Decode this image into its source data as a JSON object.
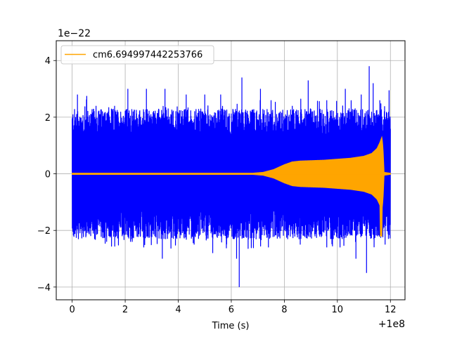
{
  "chart_data": {
    "type": "line",
    "title": "",
    "xlabel": "Time (s)",
    "ylabel": "",
    "x_offset_label": "+1e8",
    "y_scale_label": "1e−22",
    "xlim": [
      -0.6,
      12.55
    ],
    "ylim": [
      -4.45,
      4.7
    ],
    "x_ticks": [
      0,
      2,
      4,
      6,
      8,
      10,
      12
    ],
    "x_tick_labels": [
      "0",
      "2",
      "4",
      "6",
      "8",
      "10",
      "12"
    ],
    "y_ticks": [
      -4,
      -2,
      0,
      2,
      4
    ],
    "y_tick_labels": [
      "−4",
      "−2",
      "0",
      "2",
      "4"
    ],
    "grid": true,
    "legend_position": "top-left",
    "series": [
      {
        "name": "",
        "color": "#0000ff",
        "kind": "noise",
        "x_range": [
          0,
          12.0
        ],
        "typical_amplitude": 2.3,
        "peaks": [
          {
            "x": 0.2,
            "y": 2.8
          },
          {
            "x": 0.55,
            "y": 2.75
          },
          {
            "x": 0.9,
            "y": 2.4
          },
          {
            "x": 1.6,
            "y": 2.4
          },
          {
            "x": 2.1,
            "y": 3.0
          },
          {
            "x": 2.8,
            "y": 3.0
          },
          {
            "x": 3.5,
            "y": 3.0
          },
          {
            "x": 4.3,
            "y": 2.8
          },
          {
            "x": 5.0,
            "y": 2.8
          },
          {
            "x": 5.6,
            "y": 2.8
          },
          {
            "x": 6.4,
            "y": 3.4
          },
          {
            "x": 7.1,
            "y": 3.0
          },
          {
            "x": 7.5,
            "y": 2.6
          },
          {
            "x": 8.3,
            "y": 2.4
          },
          {
            "x": 8.9,
            "y": 3.3
          },
          {
            "x": 9.6,
            "y": 2.6
          },
          {
            "x": 10.3,
            "y": 3.0
          },
          {
            "x": 10.9,
            "y": 2.8
          },
          {
            "x": 11.2,
            "y": 3.8
          },
          {
            "x": 11.35,
            "y": 3.2
          },
          {
            "x": 11.6,
            "y": 2.6
          },
          {
            "x": 11.95,
            "y": 2.95
          }
        ],
        "troughs": [
          {
            "x": 0.1,
            "y": -1.8
          },
          {
            "x": 0.7,
            "y": -2.2
          },
          {
            "x": 1.3,
            "y": -2.4
          },
          {
            "x": 2.2,
            "y": -2.4
          },
          {
            "x": 2.7,
            "y": -2.6
          },
          {
            "x": 3.4,
            "y": -3.0
          },
          {
            "x": 4.6,
            "y": -2.5
          },
          {
            "x": 5.3,
            "y": -2.8
          },
          {
            "x": 6.3,
            "y": -4.0
          },
          {
            "x": 6.2,
            "y": -3.0
          },
          {
            "x": 7.4,
            "y": -2.6
          },
          {
            "x": 8.6,
            "y": -2.5
          },
          {
            "x": 9.6,
            "y": -2.6
          },
          {
            "x": 10.1,
            "y": -2.6
          },
          {
            "x": 10.7,
            "y": -3.0
          },
          {
            "x": 11.1,
            "y": -3.5
          },
          {
            "x": 11.8,
            "y": -2.5
          }
        ]
      },
      {
        "name": "cm6.694997442253766",
        "color": "#ffa500",
        "kind": "chirp",
        "envelope": [
          {
            "x": 0.0,
            "y": 0.02
          },
          {
            "x": 6.8,
            "y": 0.02
          },
          {
            "x": 7.2,
            "y": 0.05
          },
          {
            "x": 7.6,
            "y": 0.15
          },
          {
            "x": 8.0,
            "y": 0.32
          },
          {
            "x": 8.3,
            "y": 0.42
          },
          {
            "x": 8.6,
            "y": 0.45
          },
          {
            "x": 9.5,
            "y": 0.48
          },
          {
            "x": 10.5,
            "y": 0.55
          },
          {
            "x": 11.0,
            "y": 0.62
          },
          {
            "x": 11.3,
            "y": 0.72
          },
          {
            "x": 11.5,
            "y": 0.9
          },
          {
            "x": 11.6,
            "y": 1.1
          },
          {
            "x": 11.68,
            "y": 1.3
          },
          {
            "x": 11.72,
            "y": 0.9
          },
          {
            "x": 11.76,
            "y": 0.05
          },
          {
            "x": 12.0,
            "y": 0.02
          }
        ],
        "lower_extreme": {
          "x": 11.65,
          "y": -2.2
        }
      }
    ]
  }
}
